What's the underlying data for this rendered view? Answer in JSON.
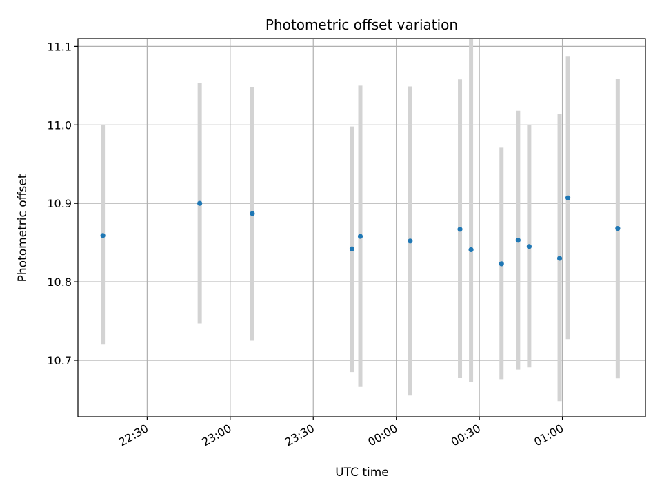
{
  "chart_data": {
    "type": "scatter",
    "title": "Photometric offset variation",
    "xlabel": "UTC time",
    "ylabel": "Photometric offset",
    "xlim": [
      "22:05",
      "01:30"
    ],
    "ylim": [
      10.628,
      11.11
    ],
    "x_ticks": [
      "22:30",
      "23:00",
      "23:30",
      "00:00",
      "00:30",
      "01:00"
    ],
    "y_ticks": [
      10.7,
      10.8,
      10.9,
      11.0,
      11.1
    ],
    "y_tick_labels": [
      "10.7",
      "10.8",
      "10.9",
      "11.0",
      "11.1"
    ],
    "grid": true,
    "series": [
      {
        "x": [
          "22:14",
          "22:49",
          "23:08",
          "23:44",
          "23:47",
          "00:05",
          "00:23",
          "00:27",
          "00:38",
          "00:44",
          "00:48",
          "00:59",
          "01:02",
          "01:20"
        ],
        "y": [
          10.859,
          10.9,
          10.887,
          10.842,
          10.858,
          10.852,
          10.867,
          10.841,
          10.823,
          10.853,
          10.845,
          10.83,
          10.907,
          10.868
        ],
        "y_low": [
          10.72,
          10.747,
          10.725,
          10.685,
          10.666,
          10.655,
          10.678,
          10.672,
          10.676,
          10.688,
          10.691,
          10.648,
          10.727,
          10.677
        ],
        "y_high": [
          11.0,
          11.053,
          11.048,
          10.998,
          11.05,
          11.049,
          11.058,
          11.11,
          10.971,
          11.018,
          11.0,
          11.014,
          11.087,
          11.059
        ],
        "marker_color": "#1f77b4",
        "errorbar_color": "#d3d3d3"
      }
    ]
  }
}
